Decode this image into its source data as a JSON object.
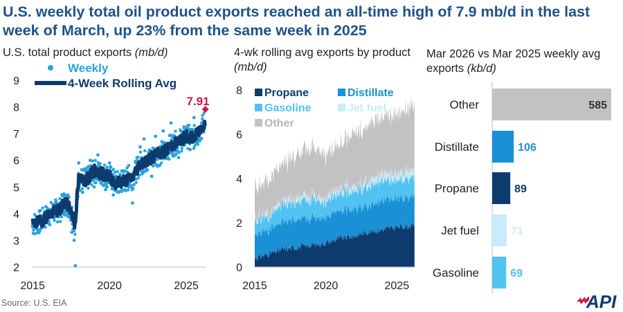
{
  "headline": "U.S. weekly total oil product exports reached an all-time high of 7.9 mb/d in the last week of March, up 23% from the same week in 2025",
  "source": "Source: U.S. EIA",
  "logo_text": "API",
  "colors": {
    "title_blue": "#1f5287",
    "weekly_dot": "#29a3dc",
    "rolling_line": "#0d3b6e",
    "highlight": "#c8194b",
    "propane": "#0d3b6e",
    "distillate": "#1a90d6",
    "gasoline": "#52c3f0",
    "jet_fuel": "#c9ebfa",
    "other": "#c2c2c2",
    "logo_red": "#c8194b"
  },
  "chart_data": [
    {
      "type": "scatter",
      "title": "U.S. total product exports",
      "title_unit": "(mb/d)",
      "xlabel": "",
      "ylabel": "",
      "xlim": [
        2014.95,
        2026.3
      ],
      "ylim": [
        2,
        9
      ],
      "yticks": [
        "2",
        "3",
        "4",
        "5",
        "6",
        "7",
        "8",
        "9"
      ],
      "xticks": [
        "2015",
        "2020",
        "2025"
      ],
      "legend": [
        {
          "name": "Weekly",
          "style": "dot"
        },
        {
          "name": "4-Week Rolling Avg",
          "style": "line"
        }
      ],
      "annotation": {
        "label": "7.91",
        "x": 2026.24,
        "y": 7.91
      },
      "series": [
        {
          "name": "4-Week Rolling Avg",
          "x": [
            2015.0,
            2015.5,
            2016.0,
            2016.5,
            2016.8,
            2017.0,
            2017.4,
            2017.75,
            2018.0,
            2018.5,
            2019.0,
            2019.5,
            2020.0,
            2020.4,
            2020.8,
            2021.0,
            2021.5,
            2022.0,
            2022.5,
            2023.0,
            2023.5,
            2024.0,
            2024.5,
            2025.0,
            2025.5,
            2026.0,
            2026.24
          ],
          "y": [
            3.6,
            3.7,
            3.95,
            4.1,
            4.15,
            4.4,
            4.3,
            3.6,
            5.3,
            5.25,
            5.6,
            5.5,
            5.4,
            5.15,
            5.2,
            5.25,
            5.35,
            5.9,
            6.0,
            6.2,
            6.3,
            6.55,
            6.7,
            6.9,
            6.85,
            7.2,
            7.5
          ]
        },
        {
          "name": "Weekly",
          "x": [
            2015.0,
            2015.3,
            2015.6,
            2015.9,
            2016.2,
            2016.5,
            2016.8,
            2017.0,
            2017.3,
            2017.55,
            2017.7,
            2017.78,
            2018.0,
            2018.25,
            2018.5,
            2018.75,
            2019.0,
            2019.25,
            2019.5,
            2019.75,
            2020.0,
            2020.25,
            2020.4,
            2020.6,
            2020.8,
            2021.0,
            2021.25,
            2021.5,
            2021.75,
            2022.0,
            2022.25,
            2022.5,
            2022.75,
            2023.0,
            2023.25,
            2023.5,
            2023.75,
            2024.0,
            2024.25,
            2024.5,
            2024.75,
            2025.0,
            2025.25,
            2025.5,
            2025.75,
            2026.0,
            2026.24
          ],
          "y": [
            3.5,
            3.8,
            3.6,
            4.1,
            3.9,
            4.3,
            4.4,
            4.0,
            4.7,
            3.3,
            3.0,
            2.05,
            5.9,
            4.8,
            5.2,
            6.0,
            5.0,
            6.2,
            5.2,
            4.9,
            5.9,
            4.7,
            5.1,
            4.8,
            5.6,
            4.9,
            5.8,
            4.4,
            5.9,
            6.5,
            6.8,
            6.0,
            5.4,
            6.9,
            5.8,
            7.1,
            6.2,
            7.4,
            6.9,
            6.1,
            7.0,
            7.2,
            6.4,
            7.6,
            6.6,
            7.4,
            7.91
          ]
        }
      ]
    },
    {
      "type": "area",
      "stacked": true,
      "title": "4-wk rolling avg exports by product",
      "title_unit": "(mb/d)",
      "xlabel": "",
      "ylabel": "",
      "xlim": [
        2015.0,
        2026.3
      ],
      "ylim": [
        0,
        8
      ],
      "yticks": [
        "0",
        "2",
        "4",
        "6",
        "8"
      ],
      "xticks": [
        "2015",
        "2020",
        "2025"
      ],
      "x": [
        2015,
        2016,
        2017,
        2018,
        2019,
        2020,
        2021,
        2022,
        2023,
        2024,
        2025,
        2026.24
      ],
      "series": [
        {
          "name": "Propane",
          "values": [
            0.4,
            0.6,
            0.8,
            0.9,
            1.0,
            1.1,
            1.3,
            1.4,
            1.6,
            1.7,
            1.8,
            1.9
          ]
        },
        {
          "name": "Distillate",
          "values": [
            1.1,
            1.1,
            1.2,
            1.3,
            1.2,
            1.2,
            1.2,
            1.2,
            1.2,
            1.3,
            1.3,
            1.3
          ]
        },
        {
          "name": "Gasoline",
          "values": [
            0.6,
            0.6,
            0.8,
            0.8,
            0.8,
            0.7,
            0.8,
            0.8,
            0.9,
            0.9,
            0.8,
            0.9
          ]
        },
        {
          "name": "Jet fuel",
          "values": [
            0.1,
            0.15,
            0.15,
            0.2,
            0.2,
            0.15,
            0.2,
            0.2,
            0.25,
            0.3,
            0.3,
            0.3
          ]
        },
        {
          "name": "Other",
          "values": [
            1.4,
            1.5,
            1.6,
            2.0,
            2.2,
            2.0,
            2.0,
            2.5,
            2.5,
            2.6,
            2.7,
            2.9
          ]
        }
      ]
    },
    {
      "type": "bar",
      "orientation": "horizontal",
      "title": "Mar 2026 vs Mar 2025 weekly avg exports",
      "title_unit": "(kb/d)",
      "categories": [
        "Other",
        "Distillate",
        "Propane",
        "Jet fuel",
        "Gasoline"
      ],
      "values": [
        585,
        106,
        89,
        71,
        69
      ],
      "labels": [
        "585",
        "106",
        "89",
        "71",
        "69"
      ],
      "xlim": [
        0,
        600
      ]
    }
  ]
}
